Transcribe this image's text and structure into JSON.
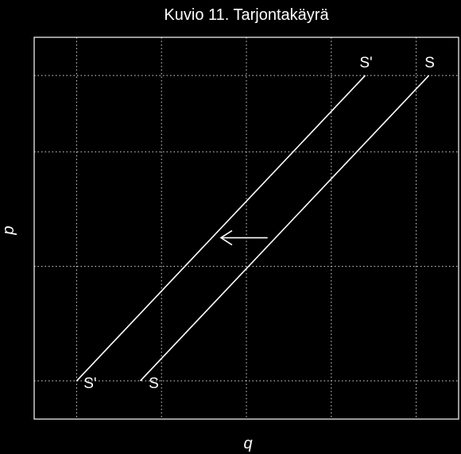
{
  "chart_data": {
    "type": "line",
    "title": "Kuvio 11. Tarjontakäyrä",
    "xlabel": "q",
    "ylabel": "p",
    "xlim": [
      0,
      10
    ],
    "ylim": [
      0,
      10
    ],
    "grid": true,
    "axis_ticks_shown": false,
    "series": [
      {
        "name": "S'",
        "start_label": "S'",
        "end_label": "S'",
        "x": [
          1.0,
          7.8
        ],
        "y": [
          1.0,
          9.0
        ]
      },
      {
        "name": "S",
        "start_label": "S",
        "end_label": "S",
        "x": [
          2.5,
          9.3
        ],
        "y": [
          1.0,
          9.0
        ]
      }
    ],
    "annotations": [
      {
        "type": "arrow",
        "direction": "left",
        "from": [
          5.5,
          4.75
        ],
        "to": [
          4.4,
          4.75
        ]
      }
    ],
    "colors": {
      "background": "#000000",
      "lines": "#ffffff",
      "grid": "#ffffff"
    }
  }
}
